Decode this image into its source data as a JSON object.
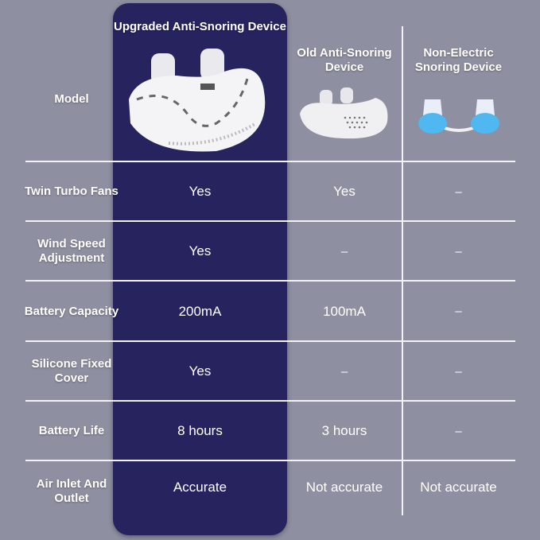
{
  "colors": {
    "background": "#8e8fa1",
    "highlight_column": "#26235f",
    "text": "#ffffff"
  },
  "header": {
    "row_label": "Model",
    "columns": [
      {
        "title": "Upgraded Anti-Snoring Device",
        "image": "large-white-twin-fan-anti-snoring-device"
      },
      {
        "title": "Old Anti-Snoring Device",
        "image": "small-white-anti-snoring-device"
      },
      {
        "title": "Non-Electric Snoring Device",
        "image": "blue-silicone-nasal-plugs"
      }
    ]
  },
  "rows": [
    {
      "label": "Twin Turbo Fans",
      "values": [
        "Yes",
        "Yes",
        "–"
      ]
    },
    {
      "label": "Wind Speed Adjustment",
      "values": [
        "Yes",
        "–",
        "–"
      ]
    },
    {
      "label": "Battery Capacity",
      "values": [
        "200mA",
        "100mA",
        "–"
      ]
    },
    {
      "label": "Silicone Fixed Cover",
      "values": [
        "Yes",
        "–",
        "–"
      ]
    },
    {
      "label": "Battery Life",
      "values": [
        "8 hours",
        "3 hours",
        "–"
      ]
    },
    {
      "label": "Air Inlet And Outlet",
      "values": [
        "Accurate",
        "Not accurate",
        "Not accurate"
      ]
    }
  ]
}
